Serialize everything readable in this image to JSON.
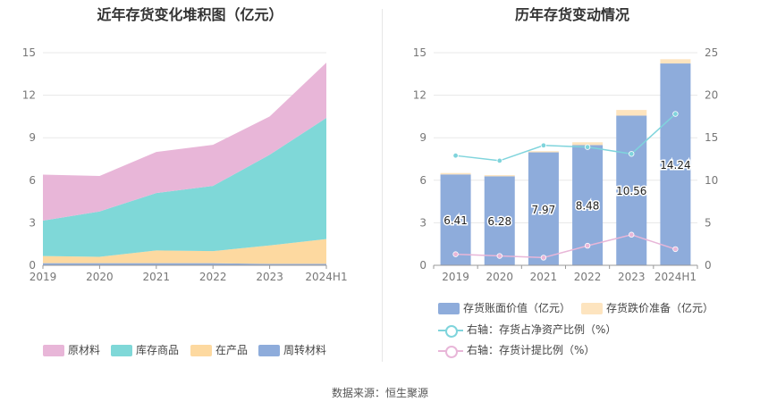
{
  "left_chart": {
    "title": "近年存货变化堆积图（亿元）",
    "legend": [
      {
        "label": "原材料",
        "color": "#e8b6d8"
      },
      {
        "label": "库存商品",
        "color": "#7fd8d8"
      },
      {
        "label": "在产品",
        "color": "#fdd9a0"
      },
      {
        "label": "周转材料",
        "color": "#8eacdb"
      }
    ]
  },
  "right_chart": {
    "title": "历年存货变动情况",
    "legend": [
      {
        "label": "存货账面价值（亿元）",
        "color": "#8eacdb"
      },
      {
        "label": "存货跌价准备（亿元）",
        "color": "#fde4bf"
      },
      {
        "label": "右轴：存货占净资产比例（%）",
        "color": "#7fd4dc"
      },
      {
        "label": "右轴：存货计提比例（%）",
        "color": "#e8b6d8"
      }
    ]
  },
  "chart_data": [
    {
      "type": "area",
      "stacked": true,
      "title": "近年存货变化堆积图（亿元）",
      "categories": [
        "2019",
        "2020",
        "2021",
        "2022",
        "2023",
        "2024H1"
      ],
      "ylim": [
        0,
        15
      ],
      "yticks": [
        0,
        3,
        6,
        9,
        12,
        15
      ],
      "series": [
        {
          "name": "周转材料",
          "color": "#8eacdb",
          "values": [
            0.15,
            0.15,
            0.15,
            0.15,
            0.1,
            0.1
          ]
        },
        {
          "name": "在产品",
          "color": "#fdd9a0",
          "values": [
            0.5,
            0.45,
            0.9,
            0.85,
            1.3,
            1.75
          ]
        },
        {
          "name": "库存商品",
          "color": "#7fd8d8",
          "values": [
            2.5,
            3.2,
            4.05,
            4.6,
            6.4,
            8.55
          ]
        },
        {
          "name": "原材料",
          "color": "#e8b6d8",
          "values": [
            3.25,
            2.5,
            2.9,
            2.9,
            2.7,
            3.9
          ]
        }
      ]
    },
    {
      "type": "bar",
      "title": "历年存货变动情况",
      "categories": [
        "2019",
        "2020",
        "2021",
        "2022",
        "2023",
        "2024H1"
      ],
      "ylim": [
        0,
        15
      ],
      "yticks": [
        0,
        3,
        6,
        9,
        12,
        15
      ],
      "y2lim": [
        0,
        25
      ],
      "y2ticks": [
        0,
        5,
        10,
        15,
        20,
        25
      ],
      "series": [
        {
          "name": "存货账面价值（亿元）",
          "color": "#8eacdb",
          "values": [
            6.41,
            6.28,
            7.97,
            8.48,
            10.56,
            14.24
          ]
        },
        {
          "name": "存货跌价准备（亿元）",
          "color": "#fde4bf",
          "values": [
            0.1,
            0.08,
            0.08,
            0.2,
            0.4,
            0.3
          ]
        },
        {
          "name": "右轴：存货占净资产比例（%）",
          "color": "#7fd4dc",
          "axis": "right",
          "values": [
            12.9,
            12.3,
            14.1,
            13.9,
            13.1,
            17.8
          ]
        },
        {
          "name": "右轴：存货计提比例（%）",
          "color": "#e8b6d8",
          "axis": "right",
          "values": [
            1.3,
            1.1,
            0.9,
            2.3,
            3.6,
            1.9
          ]
        }
      ],
      "data_labels": [
        "6.41",
        "6.28",
        "7.97",
        "8.48",
        "10.56",
        "14.24"
      ]
    }
  ],
  "footer": {
    "source": "数据来源：恒生聚源"
  }
}
